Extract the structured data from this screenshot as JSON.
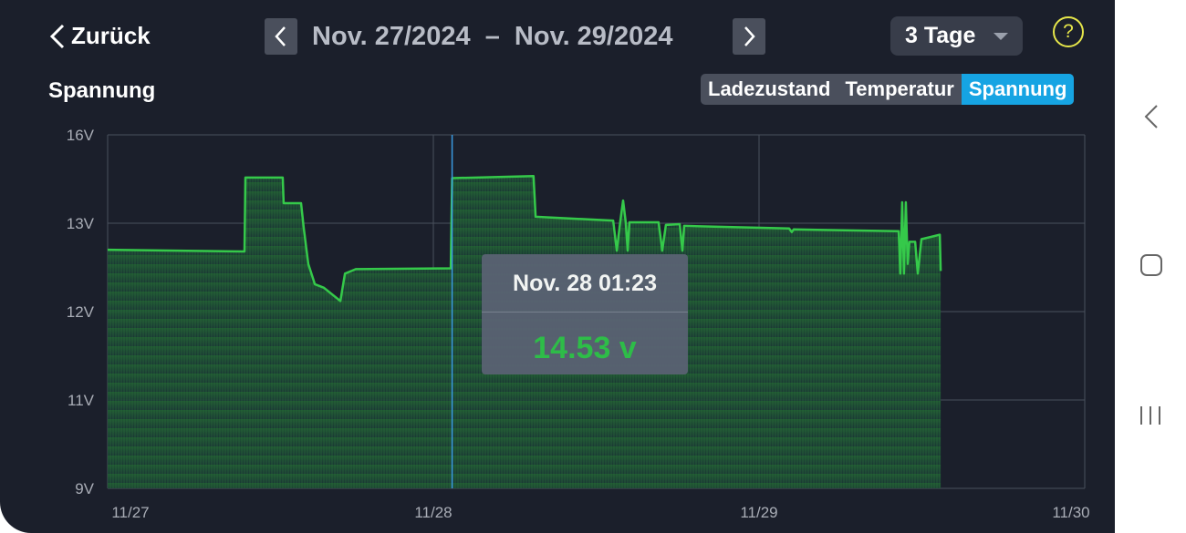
{
  "header": {
    "back_label": "Zurück",
    "date_range": "Nov. 27/2024  –  Nov. 29/2024",
    "period_select": "3 Tage",
    "help": "?"
  },
  "subtitle": "Spannung",
  "tabs": [
    {
      "label": "Ladezustand",
      "active": false
    },
    {
      "label": "Temperatur",
      "active": false
    },
    {
      "label": "Spannung",
      "active": true
    }
  ],
  "tooltip": {
    "time": "Nov. 28 01:23",
    "value": "14.53 v"
  },
  "colors": {
    "line": "#35c94a",
    "fill": "#1f5a32",
    "cursor": "#3a9ae0",
    "active_tab": "#16a4e3",
    "background": "#1b1f2b"
  },
  "chart_data": {
    "type": "area",
    "title": "",
    "xlabel": "",
    "ylabel": "",
    "x_ticks": [
      "11/27",
      "11/28",
      "11/29",
      "11/30"
    ],
    "y_ticks": [
      {
        "label": "9V",
        "value": 9
      },
      {
        "label": "11V",
        "value": 11
      },
      {
        "label": "12V",
        "value": 12
      },
      {
        "label": "13V",
        "value": 13
      },
      {
        "label": "16V",
        "value": 16
      }
    ],
    "xlim": [
      "2024-11-27T00:00",
      "2024-11-30T00:00"
    ],
    "ylim": [
      9,
      16
    ],
    "grid": true,
    "cursor_x": "2024-11-28T01:23",
    "points": [
      [
        "2024-11-27T00:00",
        12.7
      ],
      [
        "2024-11-27T10:05",
        12.68
      ],
      [
        "2024-11-27T10:09",
        14.55
      ],
      [
        "2024-11-27T12:54",
        14.55
      ],
      [
        "2024-11-27T12:58",
        13.68
      ],
      [
        "2024-11-27T14:15",
        13.68
      ],
      [
        "2024-11-27T14:27",
        12.95
      ],
      [
        "2024-11-27T14:47",
        12.54
      ],
      [
        "2024-11-27T15:16",
        12.31
      ],
      [
        "2024-11-27T15:56",
        12.27
      ],
      [
        "2024-11-27T17:09",
        12.12
      ],
      [
        "2024-11-27T17:29",
        12.43
      ],
      [
        "2024-11-27T18:17",
        12.48
      ],
      [
        "2024-11-28T01:17",
        12.49
      ],
      [
        "2024-11-28T01:23",
        14.53
      ],
      [
        "2024-11-28T07:23",
        14.6
      ],
      [
        "2024-11-28T07:32",
        13.22
      ],
      [
        "2024-11-28T13:15",
        13.09
      ],
      [
        "2024-11-28T13:31",
        12.69
      ],
      [
        "2024-11-28T13:47",
        13.09
      ],
      [
        "2024-11-28T13:59",
        13.77
      ],
      [
        "2024-11-28T14:11",
        13.0
      ],
      [
        "2024-11-28T14:19",
        12.69
      ],
      [
        "2024-11-28T14:27",
        13.03
      ],
      [
        "2024-11-28T16:36",
        13.03
      ],
      [
        "2024-11-28T16:52",
        12.69
      ],
      [
        "2024-11-28T17:08",
        12.98
      ],
      [
        "2024-11-28T18:09",
        12.99
      ],
      [
        "2024-11-28T18:21",
        12.69
      ],
      [
        "2024-11-28T18:29",
        12.97
      ],
      [
        "2024-11-29T02:13",
        12.94
      ],
      [
        "2024-11-29T02:25",
        12.9
      ],
      [
        "2024-11-29T02:33",
        12.93
      ],
      [
        "2024-11-29T10:17",
        12.91
      ],
      [
        "2024-11-29T10:25",
        12.43
      ],
      [
        "2024-11-29T10:33",
        13.71
      ],
      [
        "2024-11-29T10:41",
        12.43
      ],
      [
        "2024-11-29T10:49",
        13.71
      ],
      [
        "2024-11-29T10:57",
        12.54
      ],
      [
        "2024-11-29T11:05",
        12.79
      ],
      [
        "2024-11-29T11:30",
        12.79
      ],
      [
        "2024-11-29T11:42",
        12.43
      ],
      [
        "2024-11-29T11:58",
        12.82
      ],
      [
        "2024-11-29T13:19",
        12.87
      ],
      [
        "2024-11-29T13:23",
        12.46
      ]
    ]
  }
}
